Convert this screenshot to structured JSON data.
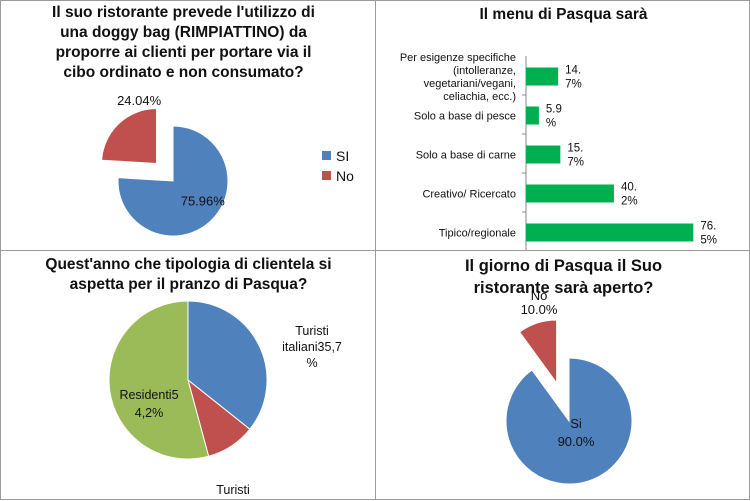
{
  "panels": {
    "p1": {
      "title_lines": [
        "Il suo ristorante prevede l'utilizzo di",
        "una doggy bag  (RIMPIATTINO) da",
        "proporre ai clienti per portare via il",
        "cibo ordinato e non consumato?"
      ],
      "legend": [
        "SI",
        "No"
      ]
    },
    "p2": {
      "title": "Il menu di Pasqua sarà"
    },
    "p3": {
      "title_lines": [
        "Quest'anno che tipologia di clientela si",
        "aspetta per il pranzo di Pasqua?"
      ]
    },
    "p4": {
      "title_lines": [
        "Il giorno di Pasqua il Suo",
        "ristorante sarà aperto?"
      ]
    }
  },
  "chart_data": [
    {
      "type": "pie",
      "title": "Il suo ristorante prevede l'utilizzo di una doggy bag  (RIMPIATTINO) da proporre ai clienti per portare via il cibo ordinato e non consumato?",
      "slices": [
        {
          "label": "SI",
          "value": 75.96,
          "data_label": "75.96%",
          "color": "#4f81bd"
        },
        {
          "label": "No",
          "value": 24.04,
          "data_label": "24.04%",
          "color": "#c0504d"
        }
      ],
      "exploded": "No",
      "legend": "right"
    },
    {
      "type": "bar",
      "orientation": "horizontal",
      "title": "Il menu di Pasqua sarà",
      "categories": [
        [
          "Per esigenze specifiche",
          "(intolleranze,",
          "vegetariani/vegani,",
          "celiachia, ecc.)"
        ],
        [
          "Solo a base di pesce"
        ],
        [
          "Solo a base di carne"
        ],
        [
          "Creativo/ Ricercato"
        ],
        [
          "Tipico/regionale"
        ]
      ],
      "values": [
        14.7,
        5.9,
        15.7,
        40.2,
        76.5
      ],
      "data_labels": [
        [
          "14.",
          "7%"
        ],
        [
          "5.9",
          "%"
        ],
        [
          "15.",
          "7%"
        ],
        [
          "40.",
          "2%"
        ],
        [
          "76.",
          "5%"
        ]
      ],
      "color": "#00b050",
      "xlim": [
        0,
        80
      ]
    },
    {
      "type": "pie",
      "title": "Quest'anno che tipologia di clientela si aspetta per il pranzo di Pasqua?",
      "slices": [
        {
          "label": "Turisti italiani",
          "value": 35.7,
          "label_lines": [
            "Turisti",
            "italiani35,7",
            "%"
          ],
          "color": "#4f81bd"
        },
        {
          "label": "Turisti",
          "value": 10.1,
          "label_lines": [
            "Turisti"
          ],
          "color": "#c0504d"
        },
        {
          "label": "Residenti",
          "value": 54.2,
          "label_lines": [
            "Residenti5",
            "4,2%"
          ],
          "color": "#9bbb59"
        }
      ]
    },
    {
      "type": "pie",
      "title": "Il giorno di Pasqua il Suo ristorante sarà aperto?",
      "slices": [
        {
          "label": "Si",
          "value": 90.0,
          "data_label": "90.0%",
          "color": "#4f81bd"
        },
        {
          "label": "No",
          "value": 10.0,
          "data_label": "10.0%",
          "color": "#c0504d"
        }
      ],
      "exploded": "No"
    }
  ]
}
